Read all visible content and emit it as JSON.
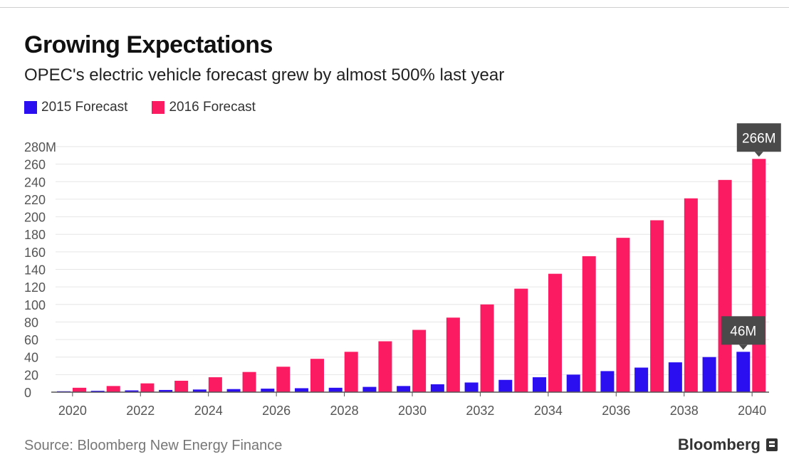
{
  "header": {
    "title": "Growing Expectations",
    "subtitle": "OPEC's electric vehicle forecast grew by almost 500% last year"
  },
  "legend": {
    "items": [
      {
        "label": "2015 Forecast",
        "color": "#2b0ff0"
      },
      {
        "label": "2016 Forecast",
        "color": "#fa1b63"
      }
    ]
  },
  "footer": {
    "source": "Source: Bloomberg New Energy Finance",
    "brand": "Bloomberg"
  },
  "chart_data": {
    "type": "bar",
    "categories": [
      "2020",
      "2021",
      "2022",
      "2023",
      "2024",
      "2025",
      "2026",
      "2027",
      "2028",
      "2029",
      "2030",
      "2031",
      "2032",
      "2033",
      "2034",
      "2035",
      "2036",
      "2037",
      "2038",
      "2039",
      "2040"
    ],
    "x_tick_labels": [
      "2020",
      "2022",
      "2024",
      "2026",
      "2028",
      "2030",
      "2032",
      "2034",
      "2036",
      "2038",
      "2040"
    ],
    "series": [
      {
        "name": "2015 Forecast",
        "color": "#2b0ff0",
        "values": [
          1,
          1.5,
          2,
          2.5,
          3,
          3.5,
          4,
          4.5,
          5,
          6,
          7,
          9,
          11,
          14,
          17,
          20,
          24,
          28,
          34,
          40,
          46
        ]
      },
      {
        "name": "2016 Forecast",
        "color": "#fa1b63",
        "values": [
          5,
          7,
          10,
          13,
          17,
          23,
          29,
          38,
          46,
          58,
          71,
          85,
          100,
          118,
          135,
          155,
          176,
          196,
          221,
          242,
          266
        ]
      }
    ],
    "y_ticks": [
      0,
      20,
      40,
      60,
      80,
      100,
      120,
      140,
      160,
      180,
      200,
      220,
      240,
      260,
      280
    ],
    "y_tick_labels": [
      "0",
      "20",
      "40",
      "60",
      "80",
      "100",
      "120",
      "140",
      "160",
      "180",
      "200",
      "220",
      "240",
      "260",
      "280M"
    ],
    "ylim": [
      0,
      280
    ],
    "grid": true,
    "callouts": [
      {
        "series": 1,
        "category": "2040",
        "label": "266M"
      },
      {
        "series": 0,
        "category": "2040",
        "label": "46M"
      }
    ]
  }
}
